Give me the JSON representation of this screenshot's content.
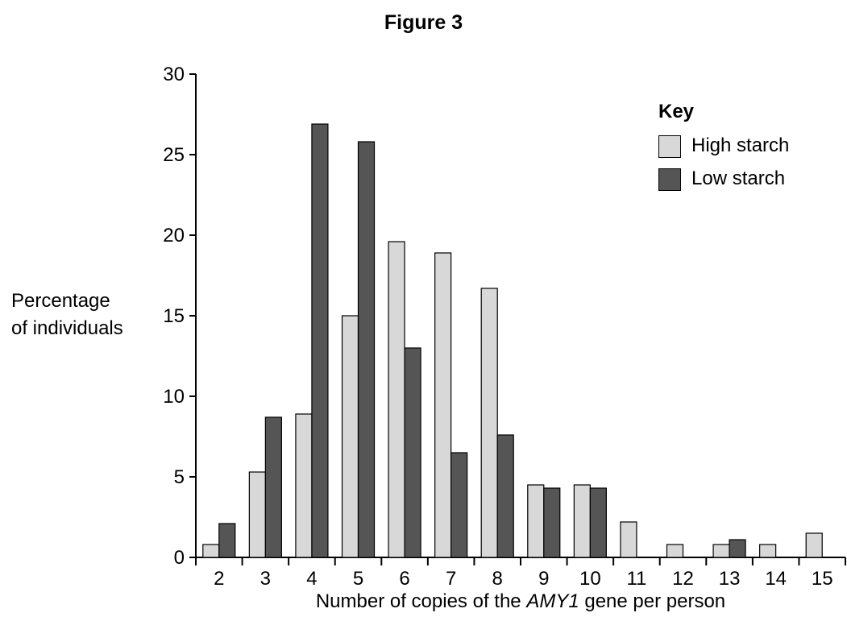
{
  "chart_data": {
    "type": "bar",
    "title": "Figure 3",
    "ylabel": [
      "Percentage",
      "of individuals"
    ],
    "xlabel": {
      "before": "Number of copies of the ",
      "emphasis": "AMY1",
      "after": " gene per person"
    },
    "categories": [
      "2",
      "3",
      "4",
      "5",
      "6",
      "7",
      "8",
      "9",
      "10",
      "11",
      "12",
      "13",
      "14",
      "15"
    ],
    "series": [
      {
        "name": "High starch",
        "color": "#d8d8d8",
        "values": [
          0.8,
          5.3,
          8.9,
          15.0,
          19.6,
          18.9,
          16.7,
          4.5,
          4.5,
          2.2,
          0.8,
          0.8,
          0.8,
          1.5
        ]
      },
      {
        "name": "Low starch",
        "color": "#555555",
        "values": [
          2.1,
          8.7,
          26.9,
          25.8,
          13.0,
          6.5,
          7.6,
          4.3,
          4.3,
          0,
          0,
          1.1,
          0,
          0
        ]
      }
    ],
    "ylim": [
      0,
      30
    ],
    "yticks": [
      "0",
      "5",
      "10",
      "15",
      "20",
      "25",
      "30"
    ],
    "legend": {
      "title": "Key",
      "placement": "top-right"
    },
    "grid": false
  }
}
